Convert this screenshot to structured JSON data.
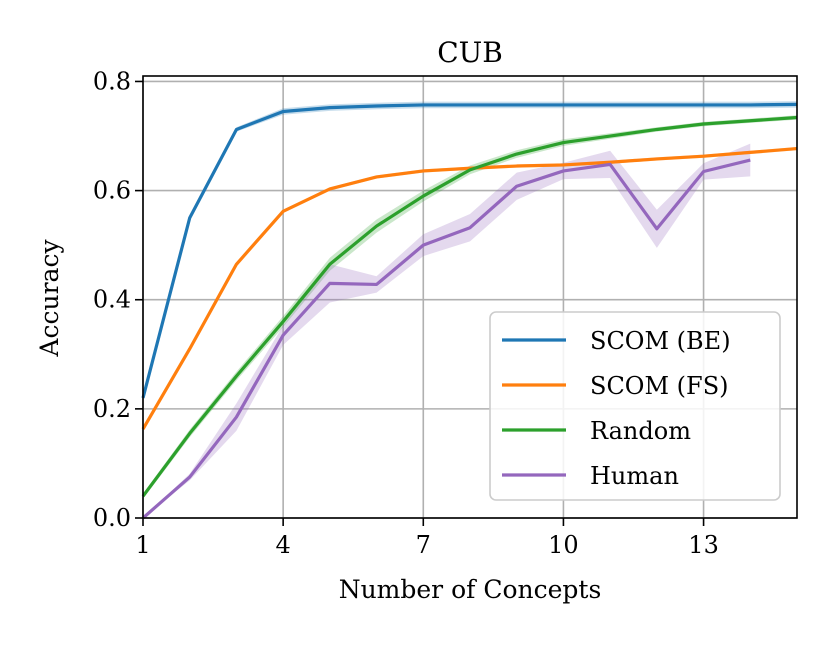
{
  "chart_data": {
    "type": "line",
    "title": "CUB",
    "xlabel": "Number of Concepts",
    "ylabel": "Accuracy",
    "xlim": [
      1,
      15
    ],
    "ylim": [
      0,
      0.81
    ],
    "xticks": [
      1,
      4,
      7,
      10,
      13
    ],
    "yticks": [
      0.0,
      0.2,
      0.4,
      0.6,
      0.8
    ],
    "xtick_labels": [
      "1",
      "4",
      "7",
      "10",
      "13"
    ],
    "ytick_labels": [
      "0.0",
      "0.2",
      "0.4",
      "0.6",
      "0.8"
    ],
    "grid": true,
    "legend_position": "bottom-right",
    "series": [
      {
        "name": "SCOM (BE)",
        "color": "#1f77b4",
        "x": [
          1,
          2,
          3,
          4,
          5,
          6,
          7,
          8,
          9,
          10,
          11,
          12,
          13,
          14,
          15
        ],
        "y": [
          0.22,
          0.55,
          0.712,
          0.745,
          0.752,
          0.755,
          0.757,
          0.757,
          0.757,
          0.757,
          0.757,
          0.757,
          0.757,
          0.757,
          0.758
        ],
        "band": [
          0.004,
          0.004,
          0.004,
          0.006,
          0.006,
          0.006,
          0.006,
          0.006,
          0.006,
          0.006,
          0.006,
          0.006,
          0.006,
          0.006,
          0.006
        ]
      },
      {
        "name": "SCOM (FS)",
        "color": "#ff7f0e",
        "x": [
          1,
          2,
          3,
          4,
          5,
          6,
          7,
          8,
          9,
          10,
          11,
          12,
          13,
          14,
          15
        ],
        "y": [
          0.163,
          0.31,
          0.465,
          0.562,
          0.603,
          0.625,
          0.636,
          0.641,
          0.645,
          0.647,
          0.652,
          0.658,
          0.663,
          0.67,
          0.677
        ],
        "band": [
          0.003,
          0.003,
          0.003,
          0.003,
          0.003,
          0.003,
          0.003,
          0.003,
          0.003,
          0.003,
          0.003,
          0.003,
          0.003,
          0.003,
          0.003
        ]
      },
      {
        "name": "Random",
        "color": "#2ca02c",
        "x": [
          1,
          2,
          3,
          4,
          5,
          6,
          7,
          8,
          9,
          10,
          11,
          12,
          13,
          14,
          15
        ],
        "y": [
          0.04,
          0.155,
          0.26,
          0.36,
          0.465,
          0.535,
          0.59,
          0.638,
          0.667,
          0.688,
          0.7,
          0.712,
          0.722,
          0.728,
          0.734
        ],
        "band": [
          0.005,
          0.007,
          0.008,
          0.01,
          0.012,
          0.012,
          0.01,
          0.008,
          0.007,
          0.006,
          0.005,
          0.004,
          0.004,
          0.004,
          0.004
        ]
      },
      {
        "name": "Human",
        "color": "#9467bd",
        "x": [
          1,
          2,
          3,
          4,
          5,
          6,
          7,
          8,
          9,
          10,
          11,
          12,
          13,
          14
        ],
        "y": [
          0.0,
          0.075,
          0.185,
          0.335,
          0.43,
          0.428,
          0.5,
          0.532,
          0.608,
          0.636,
          0.648,
          0.53,
          0.635,
          0.656
        ],
        "band": [
          0.0,
          0.006,
          0.025,
          0.018,
          0.035,
          0.015,
          0.02,
          0.025,
          0.025,
          0.015,
          0.025,
          0.035,
          0.015,
          0.03
        ]
      }
    ]
  }
}
